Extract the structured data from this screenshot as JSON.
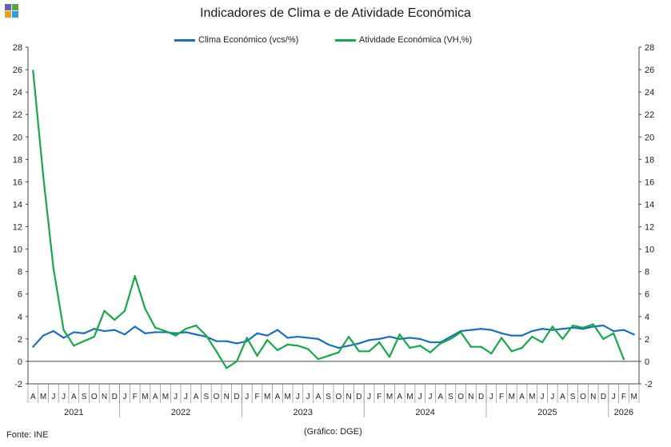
{
  "title": "Indicadores de Clima e de Atividade Económica",
  "source": "Fonte: INE",
  "credit": "(Gráfico: DGE)",
  "colors": {
    "clima": "#1f6fb5",
    "atividade": "#1aa64a",
    "logo": [
      "#6a5fb0",
      "#5aa844",
      "#e9a21f",
      "#2aa0d8"
    ]
  },
  "chart_data": {
    "type": "line",
    "title": "Indicadores de Clima e de Atividade Económica",
    "ylim": [
      -2,
      28
    ],
    "y_ticks": [
      "-2",
      "0",
      "2",
      "4",
      "6",
      "8",
      "10",
      "12",
      "14",
      "16",
      "18",
      "20",
      "22",
      "24",
      "26",
      "28"
    ],
    "grid": false,
    "legend_position": "top-center",
    "x": [
      "2021-04",
      "2021-05",
      "2021-06",
      "2021-07",
      "2021-08",
      "2021-09",
      "2021-10",
      "2021-11",
      "2021-12",
      "2022-01",
      "2022-02",
      "2022-03",
      "2022-04",
      "2022-05",
      "2022-06",
      "2022-07",
      "2022-08",
      "2022-09",
      "2022-10",
      "2022-11",
      "2022-12",
      "2023-01",
      "2023-02",
      "2023-03",
      "2023-04",
      "2023-05",
      "2023-06",
      "2023-07",
      "2023-08",
      "2023-09",
      "2023-10",
      "2023-11",
      "2023-12",
      "2024-01",
      "2024-02",
      "2024-03",
      "2024-04",
      "2024-05",
      "2024-06",
      "2024-07",
      "2024-08",
      "2024-09",
      "2024-10",
      "2024-11",
      "2024-12",
      "2025-01",
      "2025-02",
      "2025-03",
      "2025-04",
      "2025-05",
      "2025-06",
      "2025-07",
      "2025-08",
      "2025-09",
      "2025-10",
      "2025-11",
      "2025-12",
      "2026-01",
      "2026-02",
      "2026-03"
    ],
    "month_labels": [
      "A",
      "M",
      "J",
      "J",
      "A",
      "S",
      "O",
      "N",
      "D",
      "J",
      "F",
      "M",
      "A",
      "M",
      "J",
      "J",
      "A",
      "S",
      "O",
      "N",
      "D",
      "J",
      "F",
      "M",
      "A",
      "M",
      "J",
      "J",
      "A",
      "S",
      "O",
      "N",
      "D",
      "J",
      "F",
      "M",
      "A",
      "M",
      "J",
      "J",
      "A",
      "S",
      "O",
      "N",
      "D",
      "J",
      "F",
      "M",
      "A",
      "M",
      "J",
      "J",
      "A",
      "S",
      "O",
      "N",
      "D",
      "J",
      "F",
      "M"
    ],
    "years": [
      {
        "label": "2021",
        "start": 0,
        "end": 9
      },
      {
        "label": "2022",
        "start": 9,
        "end": 21
      },
      {
        "label": "2023",
        "start": 21,
        "end": 33
      },
      {
        "label": "2024",
        "start": 33,
        "end": 45
      },
      {
        "label": "2025",
        "start": 45,
        "end": 57
      },
      {
        "label": "2026",
        "start": 57,
        "end": 60
      }
    ],
    "series": [
      {
        "name": "Clima Económico (vcs/%)",
        "color": "#1f6fb5",
        "values": [
          1.3,
          2.3,
          2.7,
          2.1,
          2.6,
          2.5,
          2.9,
          2.7,
          2.8,
          2.4,
          3.1,
          2.5,
          2.6,
          2.6,
          2.5,
          2.6,
          2.4,
          2.2,
          1.8,
          1.8,
          1.6,
          1.8,
          2.5,
          2.3,
          2.8,
          2.1,
          2.2,
          2.1,
          2.0,
          1.5,
          1.2,
          1.4,
          1.6,
          1.9,
          2.0,
          2.2,
          2.0,
          2.1,
          2.0,
          1.7,
          1.7,
          2.2,
          2.7,
          2.8,
          2.9,
          2.8,
          2.5,
          2.3,
          2.3,
          2.7,
          2.9,
          2.8,
          2.9,
          3.0,
          2.9,
          3.1,
          3.2,
          2.7,
          2.8,
          2.4
        ]
      },
      {
        "name": "Atividade Económica (VH,%)",
        "color": "#1aa64a",
        "values": [
          25.9,
          16.5,
          8.3,
          2.8,
          1.4,
          1.8,
          2.2,
          4.5,
          3.7,
          4.5,
          7.6,
          4.7,
          3.0,
          2.7,
          2.3,
          2.9,
          3.2,
          2.3,
          0.9,
          -0.6,
          0.0,
          2.1,
          0.5,
          1.9,
          1.0,
          1.5,
          1.4,
          1.1,
          0.2,
          0.5,
          0.8,
          2.2,
          0.9,
          0.9,
          1.7,
          0.4,
          2.4,
          1.2,
          1.4,
          0.8,
          1.6,
          2.0,
          2.6,
          1.3,
          1.3,
          0.7,
          2.1,
          0.9,
          1.2,
          2.2,
          1.7,
          3.1,
          2.0,
          3.2,
          3.0,
          3.3,
          2.0,
          2.5,
          0.2,
          null
        ]
      }
    ]
  }
}
